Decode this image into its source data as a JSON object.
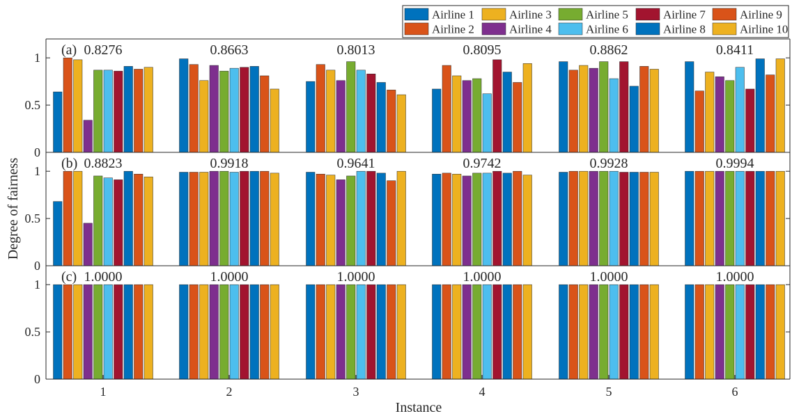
{
  "chart_data": {
    "type": "bar",
    "xlabel": "Instance",
    "ylabel": "Degree of fairness",
    "categories": [
      "1",
      "2",
      "3",
      "4",
      "5",
      "6"
    ],
    "ylim": [
      0,
      1.2
    ],
    "yticks": [
      "0",
      "0.5",
      "1"
    ],
    "legend_position": "top-right",
    "series_names": [
      "Airline 1",
      "Airline 2",
      "Airline 3",
      "Airline 4",
      "Airline 5",
      "Airline 6",
      "Airline 7",
      "Airline 8",
      "Airline 9",
      "Airline 10"
    ],
    "colors": [
      "#0072BD",
      "#D95319",
      "#EDB120",
      "#7E2F8E",
      "#77AC30",
      "#4DBEEE",
      "#A2142F",
      "#0072BD",
      "#D95319",
      "#EDB120"
    ],
    "panels": [
      {
        "label": "(a)",
        "annotations": [
          "0.8276",
          "0.8663",
          "0.8013",
          "0.8095",
          "0.8862",
          "0.8411"
        ],
        "values": [
          [
            0.64,
            1.0,
            0.98,
            0.34,
            0.87,
            0.87,
            0.86,
            0.91,
            0.88,
            0.9
          ],
          [
            0.99,
            0.93,
            0.76,
            0.92,
            0.86,
            0.89,
            0.9,
            0.91,
            0.81,
            0.67
          ],
          [
            0.75,
            0.93,
            0.87,
            0.76,
            0.96,
            0.87,
            0.83,
            0.74,
            0.66,
            0.61
          ],
          [
            0.67,
            0.92,
            0.81,
            0.76,
            0.78,
            0.62,
            0.98,
            0.85,
            0.74,
            0.94
          ],
          [
            0.96,
            0.87,
            0.92,
            0.89,
            0.96,
            0.78,
            0.96,
            0.7,
            0.91,
            0.88
          ],
          [
            0.96,
            0.65,
            0.85,
            0.8,
            0.76,
            0.9,
            0.67,
            0.99,
            0.82,
            0.99
          ]
        ]
      },
      {
        "label": "(b)",
        "annotations": [
          "0.8823",
          "0.9918",
          "0.9641",
          "0.9742",
          "0.9928",
          "0.9994"
        ],
        "values": [
          [
            0.68,
            1.0,
            1.0,
            0.45,
            0.95,
            0.93,
            0.91,
            1.0,
            0.97,
            0.94
          ],
          [
            0.99,
            0.99,
            0.99,
            1.0,
            1.0,
            0.99,
            1.0,
            1.0,
            1.0,
            0.98
          ],
          [
            0.99,
            0.97,
            0.96,
            0.91,
            0.95,
            1.0,
            1.0,
            0.98,
            0.9,
            1.0
          ],
          [
            0.97,
            0.98,
            0.97,
            0.95,
            0.98,
            0.98,
            1.0,
            0.98,
            1.0,
            0.96
          ],
          [
            0.99,
            1.0,
            1.0,
            1.0,
            1.0,
            1.0,
            0.99,
            0.99,
            0.99,
            0.99
          ],
          [
            1.0,
            1.0,
            1.0,
            1.0,
            1.0,
            1.0,
            1.0,
            1.0,
            1.0,
            1.0
          ]
        ]
      },
      {
        "label": "(c)",
        "annotations": [
          "1.0000",
          "1.0000",
          "1.0000",
          "1.0000",
          "1.0000",
          "1.0000"
        ],
        "values": [
          [
            1,
            1,
            1,
            1,
            1,
            1,
            1,
            1,
            1,
            1
          ],
          [
            1,
            1,
            1,
            1,
            1,
            1,
            1,
            1,
            1,
            1
          ],
          [
            1,
            1,
            1,
            1,
            1,
            1,
            1,
            1,
            1,
            1
          ],
          [
            1,
            1,
            1,
            1,
            1,
            1,
            1,
            1,
            1,
            1
          ],
          [
            1,
            1,
            1,
            1,
            1,
            1,
            1,
            1,
            1,
            1
          ],
          [
            1,
            1,
            1,
            1,
            1,
            1,
            1,
            1,
            1,
            1
          ]
        ]
      }
    ]
  }
}
